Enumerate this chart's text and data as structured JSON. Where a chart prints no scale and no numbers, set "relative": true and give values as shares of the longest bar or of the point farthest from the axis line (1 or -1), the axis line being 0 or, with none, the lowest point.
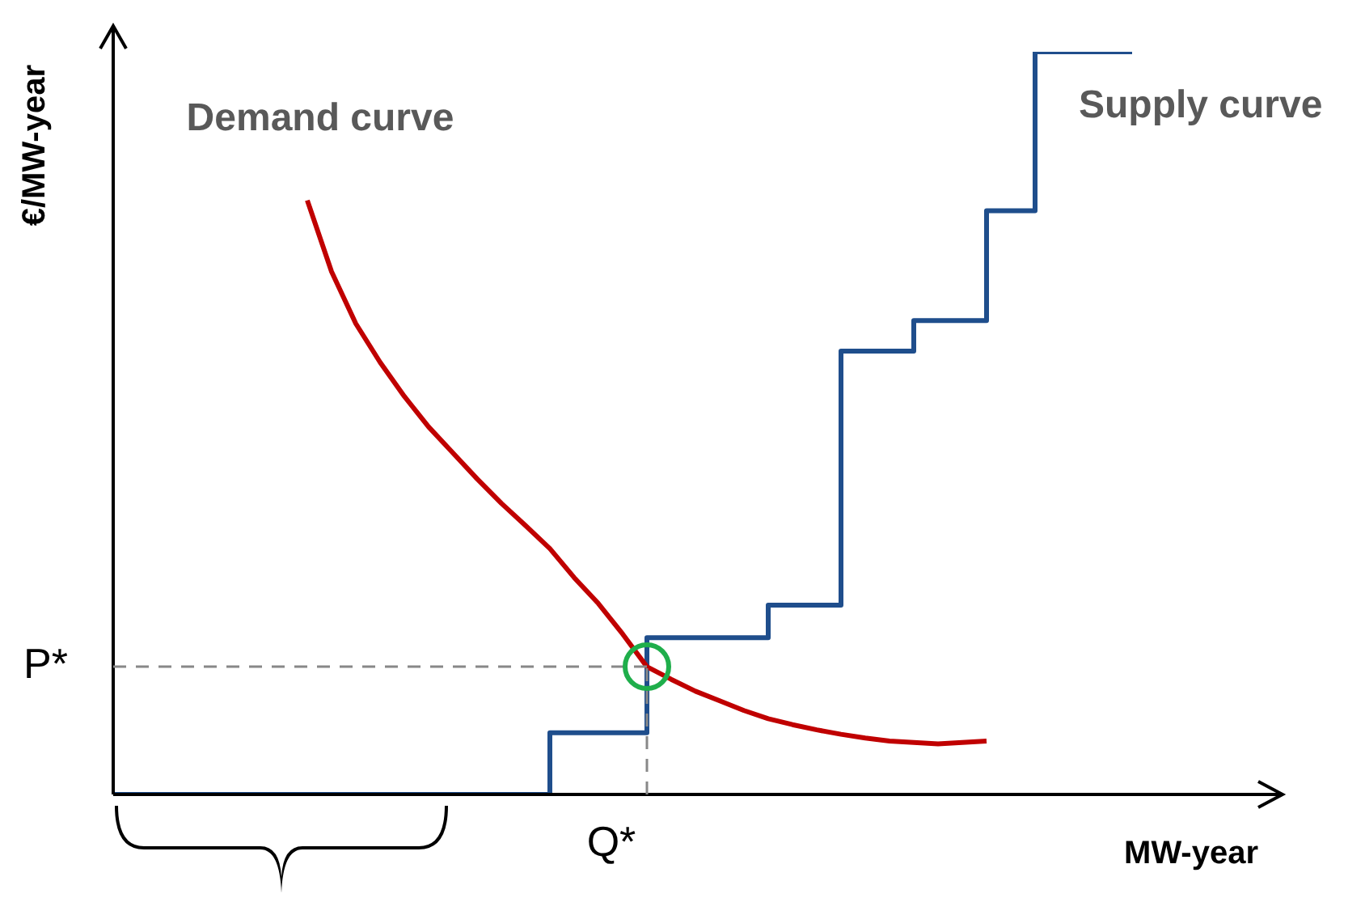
{
  "chart_data": {
    "type": "line",
    "relative": true,
    "xlabel": "MW-year",
    "ylabel": "€/MW-year",
    "legend": false,
    "tick_labels": false,
    "marker": "none",
    "categories": [
      null,
      null,
      null,
      null,
      null,
      null,
      null,
      null,
      null,
      null,
      null,
      null,
      null,
      null,
      null,
      null,
      null,
      null,
      null,
      null,
      null,
      null,
      null,
      null,
      null,
      null,
      null,
      null,
      null,
      null,
      null,
      null,
      null,
      null,
      null,
      null,
      null,
      null,
      null,
      null,
      null,
      null,
      null,
      null,
      null,
      null,
      null,
      null,
      null
    ],
    "series": [
      {
        "name": "Demand curve",
        "color": "#c00000",
        "values": [
          null,
          null,
          null,
          null,
          null,
          null,
          null,
          null,
          0.8,
          0.704,
          0.634,
          0.582,
          0.536,
          0.495,
          0.46,
          0.425,
          0.392,
          0.362,
          0.331,
          0.292,
          0.257,
          0.216,
          0.172,
          0.155,
          0.139,
          0.126,
          0.113,
          0.102,
          0.094,
          0.087,
          0.081,
          0.076,
          0.072,
          0.07,
          0.068,
          0.07,
          0.072,
          null,
          null,
          null,
          null,
          null,
          null,
          null,
          null,
          null,
          null,
          null,
          null
        ]
      },
      {
        "name": "Supply curve",
        "type": "step",
        "color": "#1f4e8c",
        "values": [
          0,
          0,
          0,
          0,
          0,
          0,
          0,
          0,
          0,
          0,
          0,
          0,
          0,
          0,
          0,
          0,
          0,
          0,
          0.083,
          0.083,
          0.083,
          0.083,
          0.211,
          0.211,
          0.211,
          0.211,
          0.211,
          0.255,
          0.255,
          0.255,
          0.597,
          0.597,
          0.597,
          0.638,
          0.638,
          0.638,
          0.786,
          0.786,
          1,
          1,
          1,
          1,
          1,
          null,
          null,
          null,
          null,
          null,
          null
        ]
      }
    ],
    "ref_lines": [
      {
        "axis": "y",
        "value": 0.172,
        "label": "P*",
        "color": "#888888",
        "line_style": "dashed"
      },
      {
        "axis": "x",
        "label": "Q*",
        "color": "#888888",
        "line_style": "dashed"
      }
    ]
  }
}
